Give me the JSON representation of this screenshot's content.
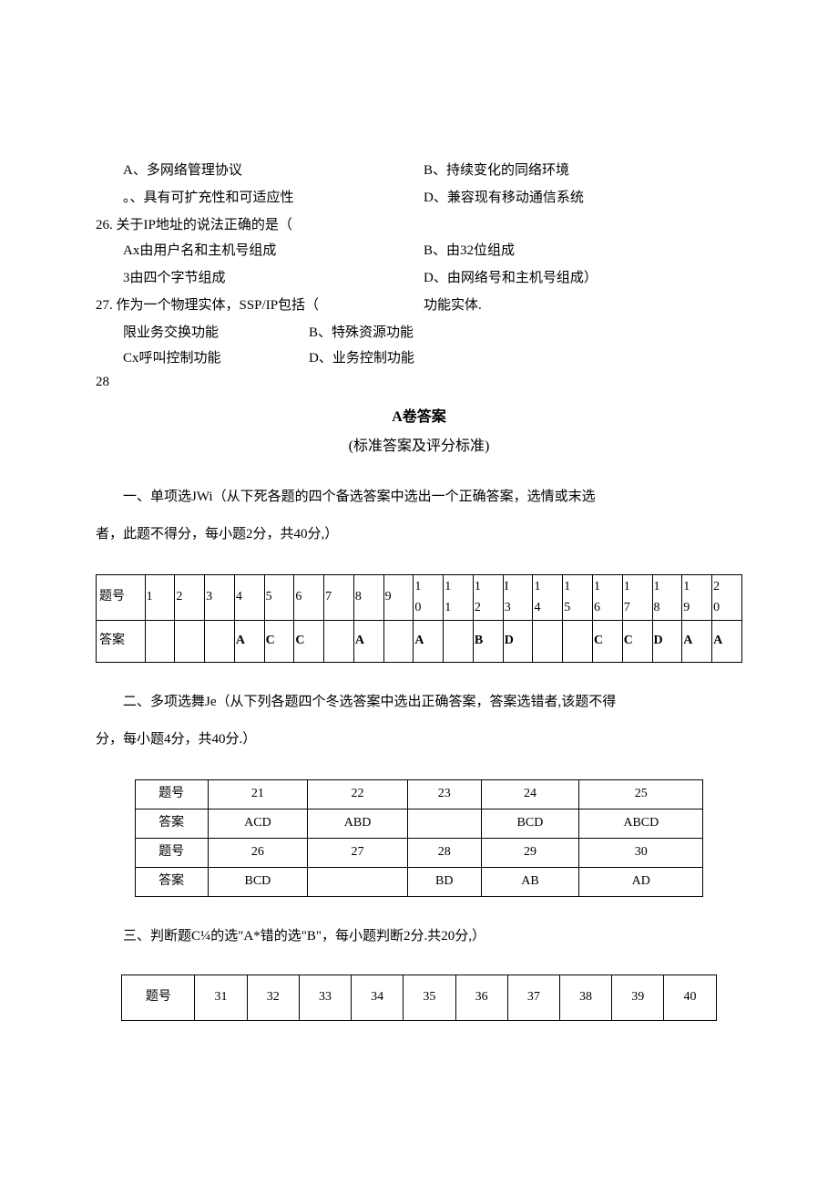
{
  "top_options": {
    "row1": {
      "left": "A、多网络管理协议",
      "right": "B、持续变化的同络环境"
    },
    "row2": {
      "left": "。、具有可扩充性和可适应性",
      "right": "D、兼容现有移动通信系统"
    }
  },
  "q26": {
    "stem": "26. 关于IP地址的说法正确的是（",
    "row1": {
      "left": "Ax由用户名和主机号组成",
      "right": "B、由32位组成"
    },
    "row2": {
      "left": "3由四个字节组成",
      "right": "D、由网络号和主机号组成）"
    }
  },
  "q27": {
    "stem_left": "27. 作为一个物理实体，SSP/IP包括（",
    "stem_right": "功能实体.",
    "row1": {
      "left": "限业务交换功能",
      "right": "B、特殊资源功能"
    },
    "row2": {
      "left": "Cx呼叫控制功能",
      "right": "D、业务控制功能"
    }
  },
  "q28": "28",
  "answer_title": "A卷答案",
  "answer_subtitle": "(标准答案及评分标准)",
  "section1": {
    "line1": "一、单项选JWi（从下死各题的四个备选答案中选出一个正确答案，选情或末选",
    "line2": "者，此题不得分，每小题2分，共40分,）"
  },
  "table1": {
    "header_label": "题号",
    "answer_label": "答案",
    "numbers": [
      "1",
      "2",
      "3",
      "4",
      "5",
      "6",
      "7",
      "8",
      "9",
      "1\n0",
      "1\n1",
      "1\n2",
      "I\n3",
      "1\n4",
      "1\n5",
      "1\n6",
      "1\n7",
      "1\n8",
      "1\n9",
      "2\n0"
    ],
    "answers": [
      "",
      "",
      "",
      "A",
      "C",
      "C",
      "",
      "A",
      "",
      "A",
      "",
      "B",
      "D",
      "",
      "",
      "C",
      "C",
      "D",
      "A",
      "A"
    ]
  },
  "section2": {
    "line1": "二、多项选舞Je（从下列各题四个冬选答案中选出正确答案，答案选错者,该题不得",
    "line2": "分，每小题4分，共40分.）"
  },
  "table2": {
    "header_label": "题号",
    "answer_label": "答案",
    "row1_nums": [
      "21",
      "22",
      "23",
      "24",
      "25"
    ],
    "row1_ans": [
      "ACD",
      "ABD",
      "",
      "BCD",
      "ABCD"
    ],
    "row2_nums": [
      "26",
      "27",
      "28",
      "29",
      "30"
    ],
    "row2_ans": [
      "BCD",
      "",
      "BD",
      "AB",
      "AD"
    ]
  },
  "section3": "三、判断题C¼的选\"A*错的选\"B\"，每小题判断2分.共20分,）",
  "table3": {
    "header_label": "题号",
    "numbers": [
      "31",
      "32",
      "33",
      "34",
      "35",
      "36",
      "37",
      "38",
      "39",
      "40"
    ]
  }
}
